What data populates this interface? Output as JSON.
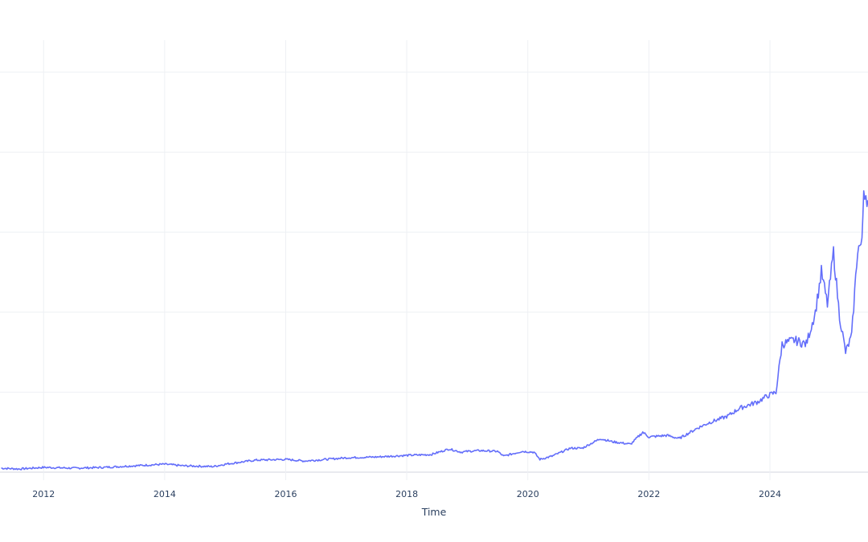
{
  "chart_data": {
    "type": "line",
    "xlabel": "Time",
    "ylabel": "",
    "xlim": [
      2011.28,
      2025.62
    ],
    "ylim": [
      -1.0,
      54.0
    ],
    "x_ticks": [
      2012,
      2014,
      2016,
      2018,
      2020,
      2022,
      2024
    ],
    "x_tick_labels": [
      "2012",
      "2014",
      "2016",
      "2018",
      "2020",
      "2022",
      "2024"
    ],
    "y_gridlines": [
      0,
      10,
      20,
      30,
      40,
      50
    ],
    "grid": true,
    "legend": "none",
    "series": [
      {
        "color": "#636efa",
        "x": [
          2011.3,
          2011.6,
          2012.0,
          2012.5,
          2013.0,
          2013.5,
          2014.0,
          2014.3,
          2014.8,
          2015.0,
          2015.5,
          2016.0,
          2016.3,
          2016.5,
          2017.0,
          2017.5,
          2018.0,
          2018.4,
          2018.7,
          2018.9,
          2019.0,
          2019.2,
          2019.5,
          2019.6,
          2019.9,
          2020.1,
          2020.2,
          2020.4,
          2020.7,
          2020.9,
          2021.2,
          2021.4,
          2021.7,
          2021.9,
          2022.0,
          2022.3,
          2022.5,
          2022.8,
          2023.0,
          2023.3,
          2023.5,
          2023.8,
          2023.95,
          2024.1,
          2024.2,
          2024.4,
          2024.6,
          2024.75,
          2024.85,
          2024.95,
          2025.05,
          2025.15,
          2025.25,
          2025.35,
          2025.45,
          2025.52,
          2025.55,
          2025.62
        ],
        "y": [
          0.5,
          0.4,
          0.6,
          0.5,
          0.6,
          0.8,
          1.0,
          0.8,
          0.7,
          1.0,
          1.5,
          1.6,
          1.4,
          1.5,
          1.8,
          1.9,
          2.1,
          2.2,
          2.9,
          2.5,
          2.6,
          2.7,
          2.6,
          2.0,
          2.6,
          2.5,
          1.6,
          2.0,
          3.0,
          3.0,
          4.2,
          3.8,
          3.5,
          5.0,
          4.4,
          4.6,
          4.2,
          5.5,
          6.2,
          7.0,
          8.0,
          8.8,
          9.5,
          10.0,
          16.0,
          16.5,
          16.0,
          20.0,
          25.0,
          21.0,
          27.5,
          19.5,
          15.0,
          17.0,
          28.0,
          28.5,
          35.5,
          34.0
        ]
      }
    ]
  }
}
